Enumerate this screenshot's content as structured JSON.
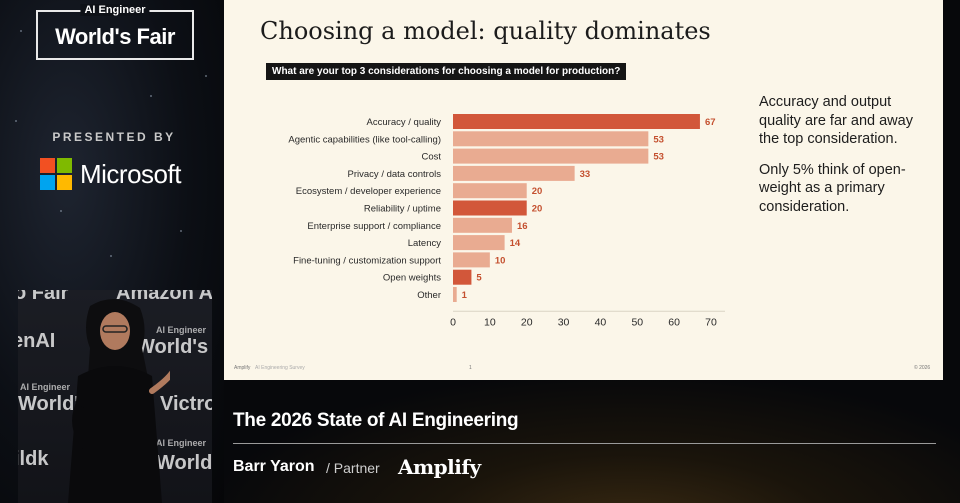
{
  "event": {
    "logo_small": "AI Engineer",
    "logo_big": "World's Fair",
    "presented_by": "PRESENTED BY",
    "sponsor": "Microsoft"
  },
  "video_wall": {
    "line1": "o Fair",
    "line1b": "Amazon A",
    "line2": "enAI",
    "small1": "AI Engineer",
    "line3": "World's F",
    "small2": "AI Engineer",
    "line4": "World's F",
    "line4b": "Victro",
    "small3": "AI Engineer",
    "line5": "ildk",
    "line5b": "World's F"
  },
  "slide": {
    "title": "Choosing a model: quality dominates",
    "question": "What are your top 3 considerations for choosing a model for production?",
    "side_note": [
      "Accuracy and output quality are far and away the top consideration.",
      "Only 5% think of open-weight as a primary consideration."
    ],
    "footer_left": "Amplify",
    "footer_left2": "AI Engineering Survey",
    "footer_mid": "1",
    "footer_right": "© 2026"
  },
  "chart_data": {
    "type": "bar",
    "orientation": "horizontal",
    "categories": [
      "Accuracy / quality",
      "Agentic capabilities (like tool-calling)",
      "Cost",
      "Privacy / data controls",
      "Ecosystem / developer experience",
      "Reliability / uptime",
      "Enterprise support / compliance",
      "Latency",
      "Fine-tuning / customization support",
      "Open weights",
      "Other"
    ],
    "values": [
      67,
      53,
      53,
      33,
      20,
      20,
      16,
      14,
      10,
      5,
      1
    ],
    "highlighted": [
      true,
      false,
      false,
      false,
      false,
      true,
      false,
      false,
      false,
      true,
      false
    ],
    "xticks": [
      0,
      10,
      20,
      30,
      40,
      50,
      60,
      70
    ],
    "xlim": [
      0,
      70
    ],
    "colors": {
      "highlight": "#d2573a",
      "normal": "#e9ab91",
      "label": "#c4502f"
    },
    "grid": false
  },
  "lower_third": {
    "talk_title": "The 2026 State of AI Engineering",
    "speaker_name": "Barr Yaron",
    "speaker_role": "/ Partner",
    "company": "Amplify"
  }
}
